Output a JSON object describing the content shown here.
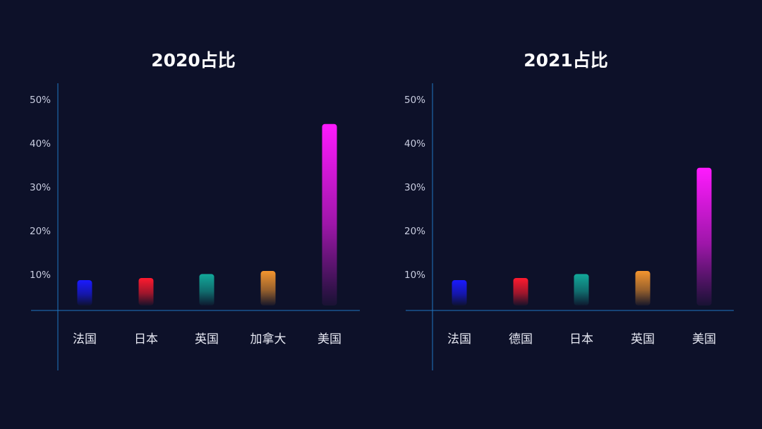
{
  "colors": {
    "background": "#0d1129",
    "axis": "#1f78c4",
    "bars": [
      "#1a1aff",
      "#ff1a2e",
      "#12a89a",
      "#f3952f",
      "#ff1aff"
    ]
  },
  "chart_data": [
    {
      "type": "bar",
      "title": "2020占比",
      "categories": [
        "法国",
        "日本",
        "英国",
        "加拿大",
        "美国"
      ],
      "values": [
        5.8,
        6.3,
        7.2,
        7.9,
        41.5
      ],
      "yticks": [
        "10%",
        "20%",
        "30%",
        "40%",
        "50%"
      ],
      "ylim": [
        0,
        50
      ],
      "grid": false,
      "legend": "none"
    },
    {
      "type": "bar",
      "title": "2021占比",
      "categories": [
        "法国",
        "德国",
        "日本",
        "英国",
        "美国"
      ],
      "values": [
        5.8,
        6.3,
        7.2,
        7.9,
        31.5
      ],
      "yticks": [
        "10%",
        "20%",
        "30%",
        "40%",
        "50%"
      ],
      "ylim": [
        0,
        50
      ],
      "grid": false,
      "legend": "none"
    }
  ]
}
